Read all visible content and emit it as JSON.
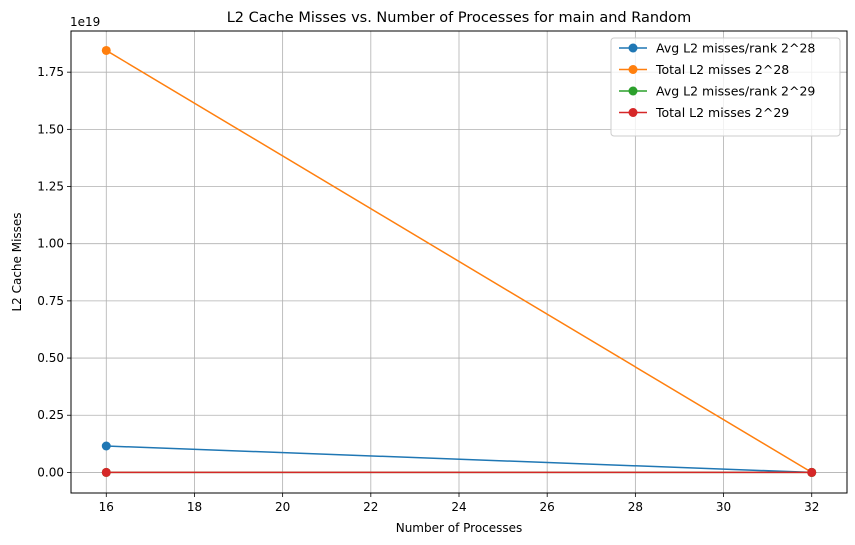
{
  "chart_data": {
    "type": "line",
    "title": "L2 Cache Misses vs. Number of Processes for main and Random",
    "xlabel": "Number of Processes",
    "ylabel": "L2 Cache Misses",
    "y_offset_label": "1e19",
    "x": [
      16,
      32
    ],
    "xlim": [
      15.2,
      32.8
    ],
    "ylim": [
      -0.09,
      1.93
    ],
    "y_scale_note": "values in units of 1e19",
    "xticks": [
      16,
      18,
      20,
      22,
      24,
      26,
      28,
      30,
      32
    ],
    "xtick_labels": [
      "16",
      "18",
      "20",
      "22",
      "24",
      "26",
      "28",
      "30",
      "32"
    ],
    "yticks": [
      0,
      0.25,
      0.5,
      0.75,
      1.0,
      1.25,
      1.5,
      1.75
    ],
    "ytick_labels": [
      "0.00",
      "0.25",
      "0.50",
      "0.75",
      "1.00",
      "1.25",
      "1.50",
      "1.75"
    ],
    "grid": true,
    "legend_position": "top-right",
    "series": [
      {
        "name": "Avg L2 misses/rank 2^28",
        "color": "#1f77b4",
        "values": [
          0.1155,
          0.0
        ]
      },
      {
        "name": "Total L2 misses 2^28",
        "color": "#ff7f0e",
        "values": [
          1.845,
          0.0
        ]
      },
      {
        "name": "Avg L2 misses/rank 2^29",
        "color": "#2ca02c",
        "values": [
          0.0,
          0.0
        ]
      },
      {
        "name": "Total L2 misses 2^29",
        "color": "#d62728",
        "values": [
          0.0,
          0.0
        ]
      }
    ]
  }
}
